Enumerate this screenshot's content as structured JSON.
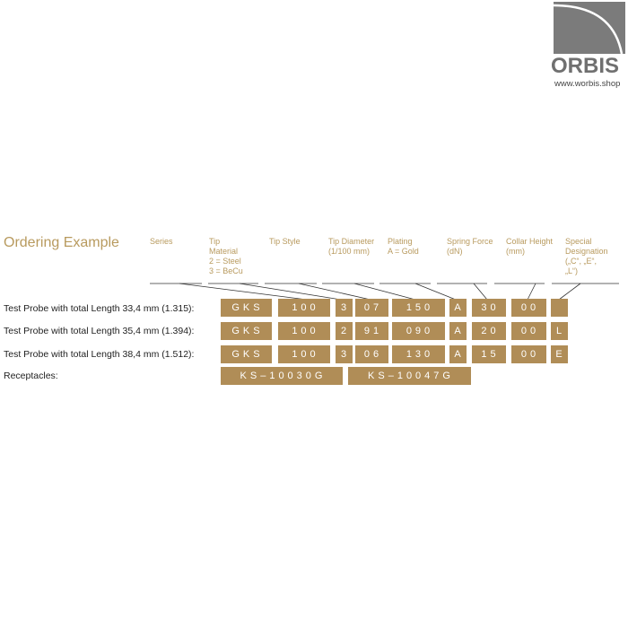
{
  "logo": {
    "name": "ORBIS",
    "url": "www.worbis.shop"
  },
  "title": "Ordering Example",
  "headers": [
    "Series",
    "Tip\nMaterial\n2 = Steel\n3 = BeCu",
    "Tip Style",
    "Tip Diameter\n(1/100 mm)",
    "Plating\nA = Gold",
    "Spring Force\n(dN)",
    "Collar Height\n(mm)",
    "Special\nDesignation\n(„C“, „E“,\n„L“)"
  ],
  "rows": [
    {
      "label": "Test Probe with total Length 33,4 mm (1.315):",
      "codes": [
        "GKS",
        "100",
        "3",
        "07",
        "150",
        "A",
        "30",
        "00",
        ""
      ]
    },
    {
      "label": "Test Probe with total Length 35,4 mm (1.394):",
      "codes": [
        "GKS",
        "100",
        "2",
        "91",
        "090",
        "A",
        "20",
        "00",
        "L"
      ]
    },
    {
      "label": "Test Probe with total Length 38,4 mm (1.512):",
      "codes": [
        "GKS",
        "100",
        "3",
        "06",
        "130",
        "A",
        "15",
        "00",
        "E"
      ]
    }
  ],
  "receptacles": {
    "label": "Receptacles:",
    "codes": [
      "KS–10030G",
      "KS–10047G"
    ]
  },
  "colors": {
    "gold": "#b08d57",
    "heading": "#b89a5e",
    "logo_gray": "#7b7b7b"
  }
}
